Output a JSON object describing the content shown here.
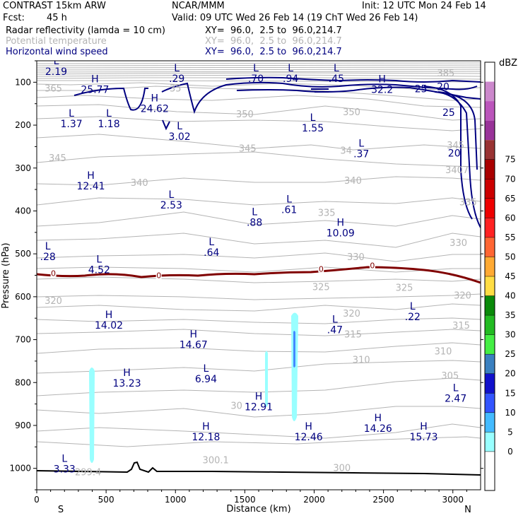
{
  "header": {
    "model": "CONTRAST 15km ARW",
    "org": "NCAR/MMM",
    "init": "Init: 12 UTC Mon 24 Feb 14",
    "fcst_label": "Fcst:",
    "fcst_value": "45 h",
    "valid": "Valid: 09 UTC Wed 26 Feb 14 (19 ChT Wed 26 Feb 14)",
    "fields": [
      {
        "name": "Radar reflectivity (lamda = 10 cm)",
        "xy": "XY=  96.0,  2.5 to  96.0,214.7"
      },
      {
        "name": "Potential temperature",
        "xy": "XY=  96.0,  2.5 to  96.0,214.7"
      },
      {
        "name": "Horizontal wind speed",
        "xy": "XY=  96.0,  2.5 to  96.0,214.7"
      }
    ]
  },
  "colors": {
    "wind": "#000080",
    "theta": "#b4b4b4",
    "zero_line": "#800000",
    "terrain": "#000000"
  },
  "chart_data": {
    "type": "cross-section",
    "xlabel": "Distance (km)",
    "ylabel": "Pressure (hPa)",
    "xlim": [
      0,
      3200
    ],
    "ylim": [
      1050,
      50
    ],
    "x_ticks": [
      0,
      500,
      1000,
      1500,
      2000,
      2500,
      3000
    ],
    "y_ticks": [
      100,
      200,
      300,
      400,
      500,
      600,
      700,
      800,
      900,
      1000
    ],
    "end_labels": {
      "left": "S",
      "right": "N"
    },
    "colorbar": {
      "unit": "dBZ",
      "levels": [
        0,
        5,
        10,
        15,
        20,
        25,
        30,
        35,
        40,
        45,
        50,
        55,
        60,
        65,
        70,
        75
      ],
      "colors": [
        "#ffffff",
        "#ffffff",
        "#99ffff",
        "#44bbff",
        "#3355ff",
        "#1111cc",
        "#3a80c0",
        "#44ee44",
        "#22bb22",
        "#0a8a0a",
        "#ffdd44",
        "#ffaa33",
        "#ff6633",
        "#ff2222",
        "#ee0000",
        "#cc0000",
        "#aa0000",
        "#993333",
        "#993399",
        "#bb55bb",
        "#cc88cc",
        "#ffffff"
      ]
    },
    "theta_labels": [
      {
        "text": "385",
        "x": 2950,
        "p": 80
      },
      {
        "text": "365",
        "x": 120,
        "p": 115
      },
      {
        "text": "35",
        "x": 1000,
        "p": 115
      },
      {
        "text": "350",
        "x": 1500,
        "p": 175
      },
      {
        "text": "350",
        "x": 2270,
        "p": 170
      },
      {
        "text": "345",
        "x": 1520,
        "p": 255
      },
      {
        "text": "345",
        "x": 150,
        "p": 277
      },
      {
        "text": "34",
        "x": 2230,
        "p": 260
      },
      {
        "text": "345",
        "x": 3020,
        "p": 248
      },
      {
        "text": "340",
        "x": 740,
        "p": 335
      },
      {
        "text": "340",
        "x": 2280,
        "p": 330
      },
      {
        "text": "3407",
        "x": 3030,
        "p": 305
      },
      {
        "text": "335",
        "x": 2090,
        "p": 405
      },
      {
        "text": "335",
        "x": 3110,
        "p": 380
      },
      {
        "text": "330",
        "x": 2300,
        "p": 508
      },
      {
        "text": "330",
        "x": 3040,
        "p": 475
      },
      {
        "text": "325",
        "x": 2050,
        "p": 578
      },
      {
        "text": "325",
        "x": 2650,
        "p": 580
      },
      {
        "text": "320",
        "x": 120,
        "p": 610
      },
      {
        "text": "320",
        "x": 2270,
        "p": 640
      },
      {
        "text": "320",
        "x": 3070,
        "p": 598
      },
      {
        "text": "315",
        "x": 2280,
        "p": 688
      },
      {
        "text": "315",
        "x": 3060,
        "p": 668
      },
      {
        "text": "310",
        "x": 2340,
        "p": 748
      },
      {
        "text": "310",
        "x": 2930,
        "p": 728
      },
      {
        "text": "305",
        "x": 2980,
        "p": 785
      },
      {
        "text": "30",
        "x": 1440,
        "p": 855
      },
      {
        "text": "299.4",
        "x": 370,
        "p": 1010
      },
      {
        "text": "300.1",
        "x": 1290,
        "p": 982
      },
      {
        "text": "300",
        "x": 2200,
        "p": 1000
      }
    ],
    "wind_labels": [
      {
        "text": "25",
        "x": 2770,
        "p": 115
      },
      {
        "text": "20",
        "x": 2930,
        "p": 110
      },
      {
        "text": "25",
        "x": 2970,
        "p": 170
      },
      {
        "text": "20",
        "x": 3010,
        "p": 265
      }
    ],
    "zero_isotherm_labels": [
      {
        "text": "0",
        "x": 120,
        "p": 545
      },
      {
        "text": "0",
        "x": 880,
        "p": 550
      },
      {
        "text": "0",
        "x": 2050,
        "p": 535
      },
      {
        "text": "0",
        "x": 2420,
        "p": 527
      }
    ],
    "extrema": [
      {
        "type": "L",
        "value": "2.19",
        "x": 140,
        "p": 58
      },
      {
        "type": "L",
        "value": ".29",
        "x": 1010,
        "p": 75
      },
      {
        "type": "L",
        "value": ".70",
        "x": 1580,
        "p": 75
      },
      {
        "type": "L",
        "value": ".94",
        "x": 1830,
        "p": 75
      },
      {
        "type": "L",
        "value": ".45",
        "x": 2160,
        "p": 75
      },
      {
        "type": "H",
        "value": "25.77",
        "x": 420,
        "p": 100
      },
      {
        "type": "H",
        "value": "24.62",
        "x": 850,
        "p": 145
      },
      {
        "type": "H",
        "value": "32.2",
        "x": 2490,
        "p": 100
      },
      {
        "type": "L",
        "value": "1.37",
        "x": 250,
        "p": 180
      },
      {
        "type": "L",
        "value": "1.18",
        "x": 520,
        "p": 180
      },
      {
        "type": "L",
        "value": "3.02",
        "x": 1030,
        "p": 210
      },
      {
        "type": "L",
        "value": "1.55",
        "x": 1990,
        "p": 190
      },
      {
        "type": "L",
        "value": ".37",
        "x": 2340,
        "p": 250
      },
      {
        "type": "H",
        "value": "12.41",
        "x": 390,
        "p": 325
      },
      {
        "type": "L",
        "value": "2.53",
        "x": 970,
        "p": 370
      },
      {
        "type": "L",
        "value": ".88",
        "x": 1570,
        "p": 410
      },
      {
        "type": "L",
        "value": ".61",
        "x": 1820,
        "p": 380
      },
      {
        "type": "H",
        "value": "10.09",
        "x": 2190,
        "p": 435
      },
      {
        "type": "L",
        "value": ".28",
        "x": 80,
        "p": 490
      },
      {
        "type": "L",
        "value": ".64",
        "x": 1260,
        "p": 480
      },
      {
        "type": "L",
        "value": "4.52",
        "x": 450,
        "p": 520
      },
      {
        "type": "L",
        "value": ".22",
        "x": 2710,
        "p": 630
      },
      {
        "type": "H",
        "value": "14.02",
        "x": 520,
        "p": 650
      },
      {
        "type": "L",
        "value": ".47",
        "x": 2150,
        "p": 660
      },
      {
        "type": "H",
        "value": "14.67",
        "x": 1130,
        "p": 695
      },
      {
        "type": "L",
        "value": "6.94",
        "x": 1220,
        "p": 775
      },
      {
        "type": "H",
        "value": "13.23",
        "x": 650,
        "p": 785
      },
      {
        "type": "L",
        "value": "2.47",
        "x": 3020,
        "p": 820
      },
      {
        "type": "H",
        "value": "12.91",
        "x": 1600,
        "p": 840
      },
      {
        "type": "H",
        "value": "14.26",
        "x": 2460,
        "p": 890
      },
      {
        "type": "H",
        "value": "12.18",
        "x": 1220,
        "p": 910
      },
      {
        "type": "H",
        "value": "12.46",
        "x": 1960,
        "p": 910
      },
      {
        "type": "H",
        "value": "15.73",
        "x": 2790,
        "p": 910
      },
      {
        "type": "L",
        "value": "3.33",
        "x": 200,
        "p": 985
      }
    ]
  }
}
